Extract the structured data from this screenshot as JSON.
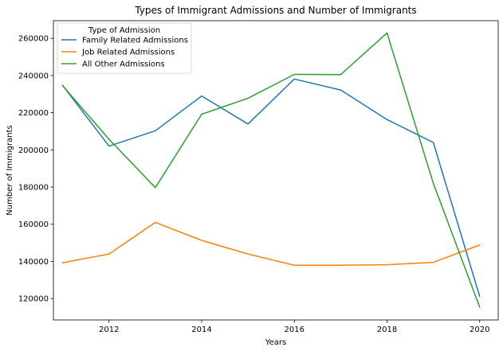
{
  "chart_data": {
    "type": "line",
    "title": "Types of Immigrant Admissions and Number of Immigrants",
    "xlabel": "Years",
    "ylabel": "Number of Immigrants",
    "x": [
      2011,
      2012,
      2013,
      2014,
      2015,
      2016,
      2017,
      2018,
      2019,
      2020
    ],
    "xlim": [
      2010.8,
      2020.4
    ],
    "ylim": [
      108500,
      269500
    ],
    "xticks": [
      2012,
      2014,
      2016,
      2018,
      2020
    ],
    "yticks": [
      120000,
      140000,
      160000,
      180000,
      200000,
      220000,
      240000,
      260000
    ],
    "ytick_labels": [
      "120000",
      "140000",
      "160000",
      "180000",
      "200000",
      "220000",
      "240000",
      "260000"
    ],
    "xtick_labels": [
      "2012",
      "2014",
      "2016",
      "2018",
      "2020"
    ],
    "grid": false,
    "legend": {
      "title": "Type of Admission",
      "placement": "top-left"
    },
    "series": [
      {
        "name": "Family Related Admissions",
        "color": "#1f77b4",
        "values": [
          234700,
          202000,
          210300,
          229000,
          213900,
          238100,
          232200,
          216300,
          204000,
          121200
        ]
      },
      {
        "name": "Job Related Admissions",
        "color": "#ff7f0e",
        "values": [
          139300,
          144000,
          161000,
          151300,
          144000,
          137900,
          137900,
          138200,
          139500,
          148800
        ]
      },
      {
        "name": "All Other Admissions",
        "color": "#2ca02c",
        "values": [
          234500,
          205700,
          179700,
          219200,
          227800,
          240600,
          240500,
          262900,
          182000,
          115500
        ]
      }
    ]
  }
}
